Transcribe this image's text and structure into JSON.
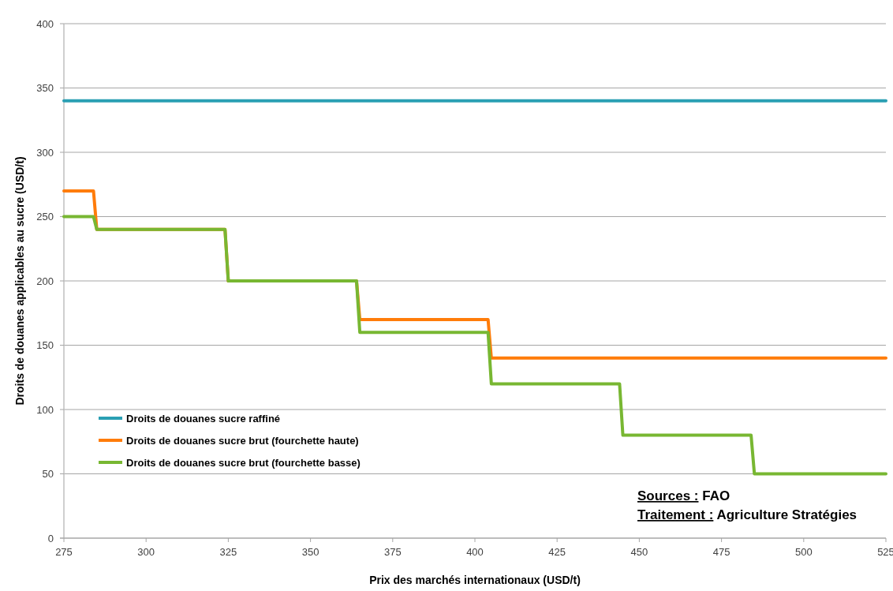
{
  "chart_data": {
    "type": "line",
    "xlabel": "Prix des marchés internationaux (USD/t)",
    "ylabel": "Droits de douanes applicables au sucre (USD/t)",
    "xlim": [
      275,
      525
    ],
    "xticks": [
      275,
      300,
      325,
      350,
      375,
      400,
      425,
      450,
      475,
      500,
      525
    ],
    "ylim": [
      0,
      400
    ],
    "yticks": [
      0,
      50,
      100,
      150,
      200,
      250,
      300,
      350,
      400
    ],
    "grid": "y",
    "legend": "bottom left",
    "marker": "none",
    "line_style": "solid",
    "series": [
      {
        "name": "Droits de douanes sucre raffiné",
        "color": "#2a9fb3",
        "x": [
          275,
          525
        ],
        "values": [
          340,
          340
        ]
      },
      {
        "name": "Droits de douanes sucre brut (fourchette haute)",
        "color": "#ff7c0a",
        "x": [
          275,
          284,
          285,
          324,
          325,
          364,
          365,
          404,
          405,
          525
        ],
        "values": [
          270,
          270,
          240,
          240,
          200,
          200,
          170,
          170,
          140,
          140
        ]
      },
      {
        "name": "Droits de douanes sucre brut (fourchette basse)",
        "color": "#78b732",
        "x": [
          275,
          284,
          285,
          324,
          325,
          364,
          365,
          404,
          405,
          444,
          445,
          484,
          485,
          525
        ],
        "values": [
          250,
          250,
          240,
          240,
          200,
          200,
          160,
          160,
          120,
          120,
          80,
          80,
          50,
          50
        ]
      }
    ],
    "annotations": [
      "Sources : FAO",
      "Traitement : Agriculture Stratégies"
    ]
  }
}
